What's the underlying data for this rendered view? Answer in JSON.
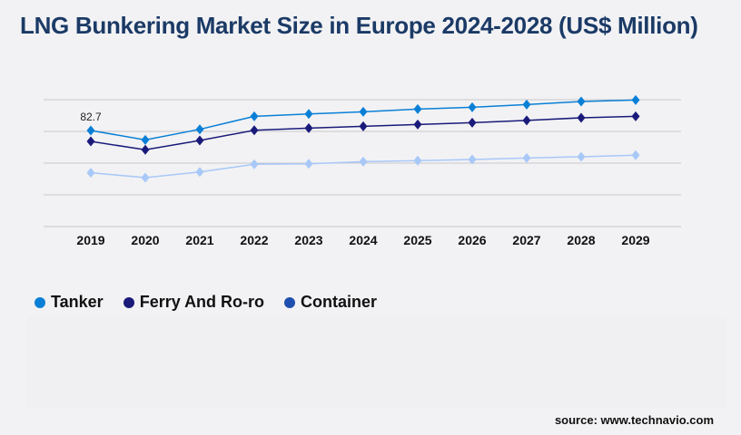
{
  "chart_data": {
    "type": "line",
    "title": "LNG Bunkering Market Size in Europe 2024-2028 (US$ Million)",
    "categories": [
      "2019",
      "2020",
      "2021",
      "2022",
      "2023",
      "2024",
      "2025",
      "2026",
      "2027",
      "2028",
      "2029"
    ],
    "ylim": [
      0,
      109.2
    ],
    "grid": true,
    "legend_position": "bottom-left",
    "series": [
      {
        "name": "Tanker",
        "color": "#0a7fd6",
        "legend_color": "#0a7fd6",
        "values": [
          82.7,
          74.6,
          83.7,
          94.9,
          96.9,
          98.8,
          101.1,
          102.7,
          105.0,
          107.6,
          108.9
        ]
      },
      {
        "name": "Ferry And Ro-ro",
        "color": "#1a1a7a",
        "legend_color": "#1a1a7a",
        "values": [
          73.3,
          66.1,
          74.1,
          82.9,
          84.7,
          86.3,
          87.8,
          89.4,
          91.4,
          93.6,
          94.9
        ]
      },
      {
        "name": "Container",
        "color": "#a8c8f8",
        "legend_color": "#1f4fb0",
        "values": [
          46.3,
          42.1,
          47.0,
          53.6,
          54.0,
          55.9,
          56.7,
          57.7,
          59.0,
          60.1,
          61.4
        ]
      }
    ],
    "annotations": [
      {
        "series": "Tanker",
        "category": "2019",
        "text": "82.7"
      }
    ]
  },
  "source": "source: www.technavio.com"
}
